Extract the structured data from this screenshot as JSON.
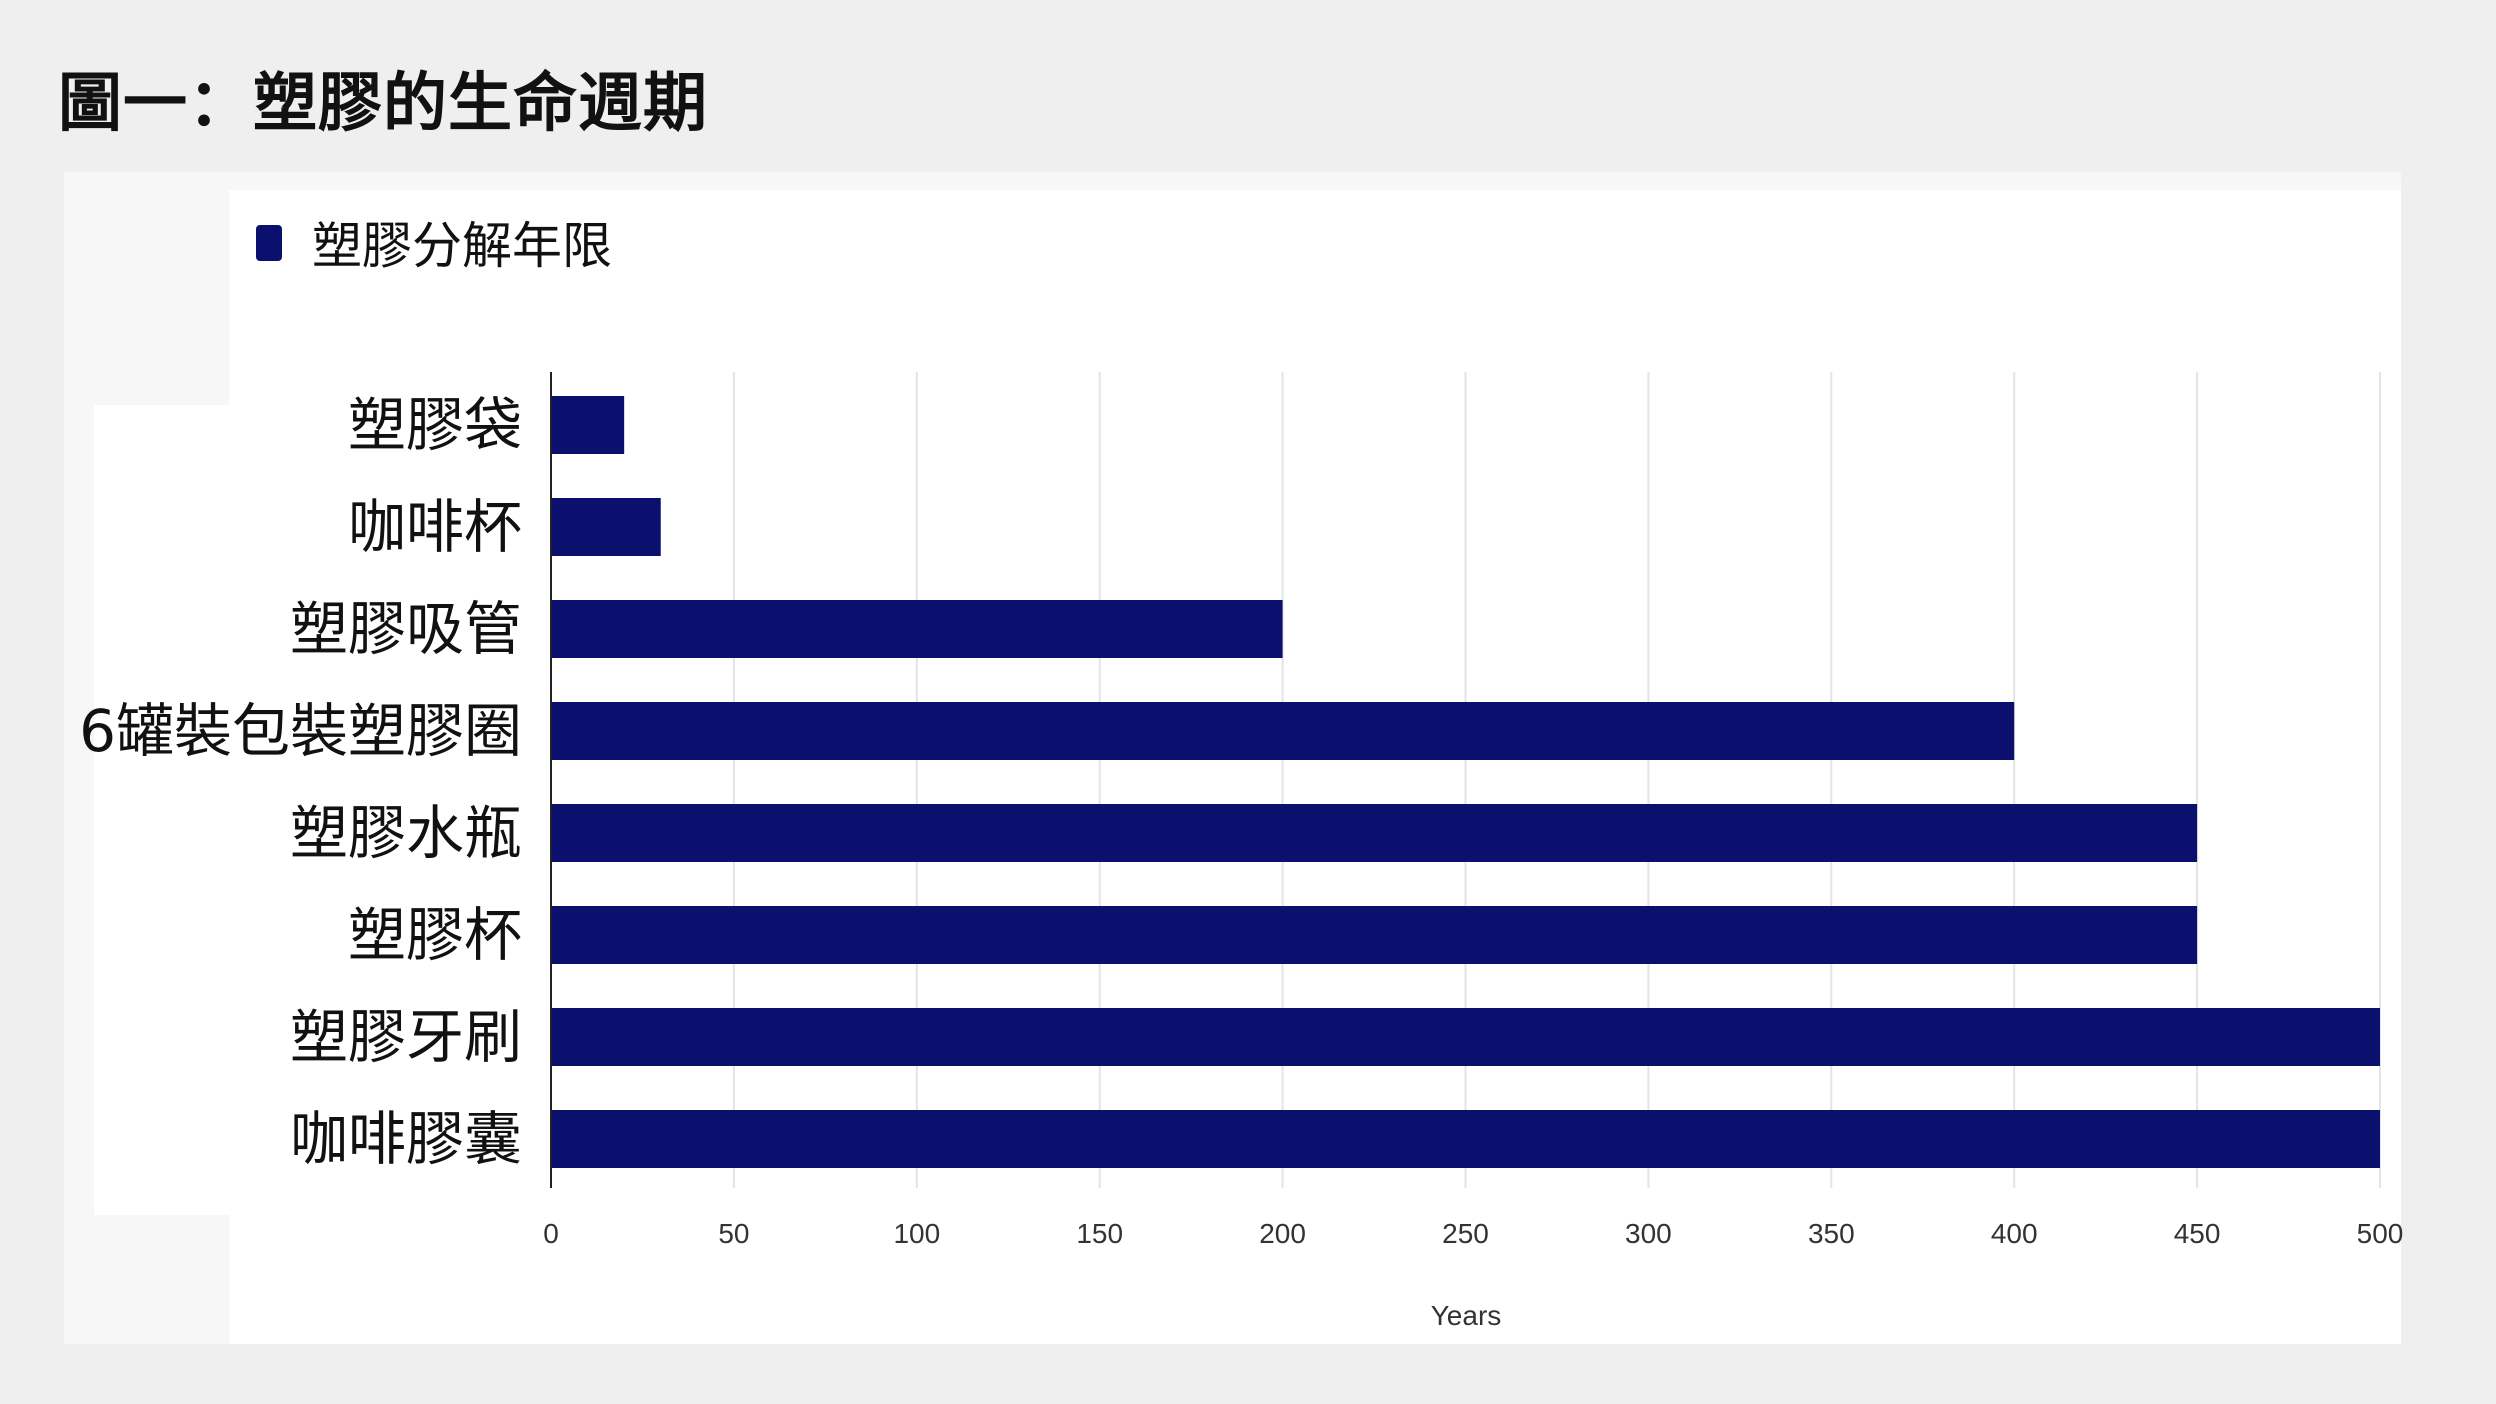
{
  "page": {
    "title": "圖一：塑膠的生命週期"
  },
  "colors": {
    "bar": "#0b0f6e",
    "grid": "#e4e4e4",
    "axis": "#222222"
  },
  "chart_data": {
    "type": "bar",
    "orientation": "horizontal",
    "categories": [
      "塑膠袋",
      "咖啡杯",
      "塑膠吸管",
      "6罐裝包裝塑膠圈",
      "塑膠水瓶",
      "塑膠杯",
      "塑膠牙刷",
      "咖啡膠囊"
    ],
    "series": [
      {
        "name": "塑膠分解年限",
        "values": [
          20,
          30,
          200,
          400,
          450,
          450,
          500,
          500
        ]
      }
    ],
    "xlabel": "Years",
    "ylabel": "",
    "xlim": [
      0,
      500
    ],
    "xticks": [
      "0",
      "50",
      "100",
      "150",
      "200",
      "250",
      "300",
      "350",
      "400",
      "450",
      "500"
    ],
    "grid": true,
    "legend_position": "top-left"
  }
}
